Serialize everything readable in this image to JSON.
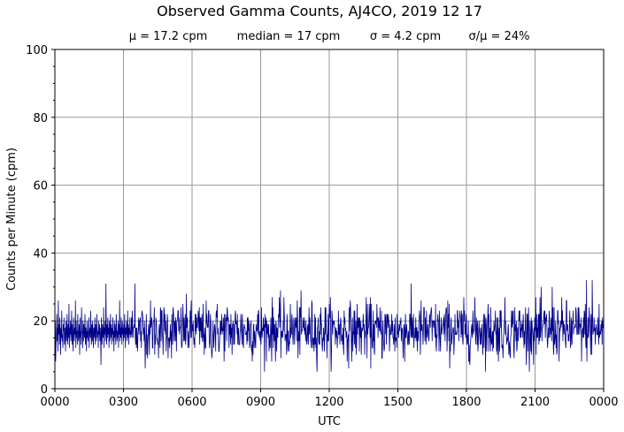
{
  "chart_data": {
    "type": "line",
    "title": "Observed Gamma Counts, AJ4CO, 2019 12 17",
    "subtitle": {
      "mean": "μ = 17.2 cpm",
      "median": "median = 17 cpm",
      "sigma": "σ = 4.2 cpm",
      "ratio": "σ/μ = 24%"
    },
    "xlabel": "UTC",
    "ylabel": "Counts per Minute (cpm)",
    "x_unit": "minutes",
    "xlim": [
      0,
      1440
    ],
    "ylim": [
      0,
      100
    ],
    "grid": true,
    "color": "#00008b",
    "x_ticks": [
      {
        "value": 0,
        "label": "0000"
      },
      {
        "value": 180,
        "label": "0300"
      },
      {
        "value": 360,
        "label": "0600"
      },
      {
        "value": 540,
        "label": "0900"
      },
      {
        "value": 720,
        "label": "1200"
      },
      {
        "value": 900,
        "label": "1500"
      },
      {
        "value": 1080,
        "label": "1800"
      },
      {
        "value": 1260,
        "label": "2100"
      },
      {
        "value": 1440,
        "label": "0000"
      }
    ],
    "y_ticks": [
      {
        "value": 0,
        "label": "0"
      },
      {
        "value": 20,
        "label": "20"
      },
      {
        "value": 40,
        "label": "40"
      },
      {
        "value": 60,
        "label": "60"
      },
      {
        "value": 80,
        "label": "80"
      },
      {
        "value": 100,
        "label": "100"
      }
    ],
    "series": [
      {
        "sampling_interval_minutes": 1,
        "values": [
          15,
          20,
          8,
          13,
          17,
          22,
          14,
          18,
          11,
          26,
          16,
          19,
          13,
          21,
          17,
          10,
          18,
          15,
          23,
          14,
          16,
          12,
          19,
          17,
          21,
          13,
          15,
          18,
          11,
          20,
          16,
          14,
          22,
          17,
          13,
          19,
          15,
          25,
          12,
          18,
          16,
          20,
          14,
          17,
          23,
          13,
          19,
          15,
          11,
          21,
          17,
          14,
          18,
          16,
          26,
          12,
          20,
          15,
          17,
          13,
          22,
          18,
          14,
          16,
          19,
          10,
          21,
          15,
          17,
          13,
          24,
          18,
          16,
          12,
          20,
          14,
          19,
          17,
          15,
          22,
          13,
          18,
          16,
          11,
          20,
          15,
          17,
          14,
          19,
          21,
          12,
          16,
          18,
          15,
          23,
          17,
          13,
          19,
          14,
          20,
          16,
          12,
          18,
          15,
          17,
          21,
          13,
          19,
          16,
          14,
          22,
          18,
          15,
          17,
          12,
          20,
          16,
          19,
          14,
          18,
          15,
          7,
          21,
          16,
          13,
          19,
          17,
          15,
          24,
          12,
          18,
          16,
          20,
          14,
          31,
          17,
          13,
          19,
          15,
          21,
          16,
          18,
          12,
          20,
          14,
          17,
          22,
          15,
          19,
          13,
          18,
          16,
          21,
          14,
          17,
          11,
          20,
          15,
          19,
          16,
          13,
          22,
          18,
          14,
          17,
          15,
          20,
          12,
          19,
          16,
          26,
          14,
          18,
          15,
          21,
          17,
          13,
          20,
          16,
          18,
          14,
          19,
          15,
          22,
          17,
          12,
          18,
          16,
          20,
          14,
          17,
          23,
          15,
          19,
          13,
          18,
          16,
          21,
          15,
          17
        ]
      }
    ],
    "series_generation": {
      "mean": 17.2,
      "sigma": 4.2,
      "min": 5,
      "max": 32,
      "peaks": [
        [
          210,
          31
        ],
        [
          1395,
          32
        ],
        [
          1410,
          32
        ],
        [
          1830,
          30
        ],
        [
          1920,
          29
        ],
        [
          1305,
          30
        ]
      ]
    }
  }
}
